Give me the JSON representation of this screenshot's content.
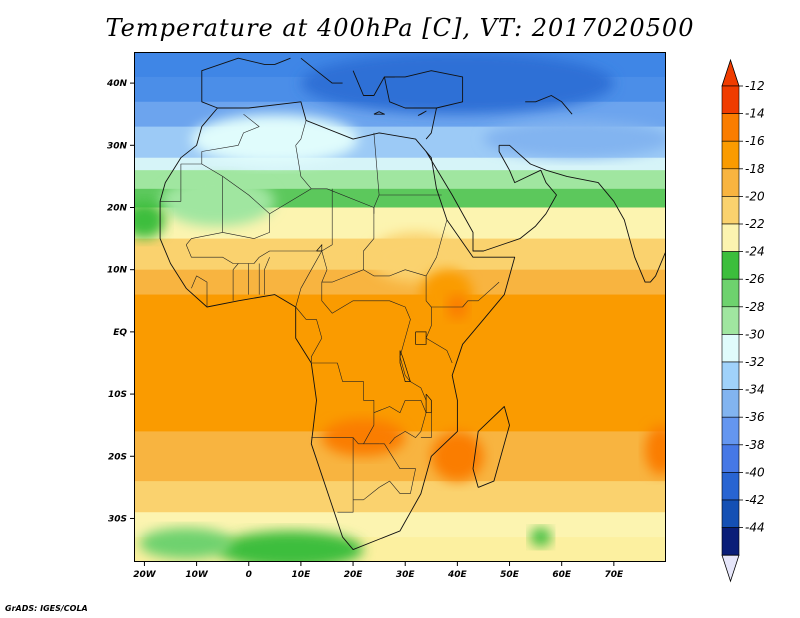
{
  "title": "Temperature at 400hPa [C], VT: 2017020500",
  "footer": "GrADS: IGES/COLA",
  "map": {
    "lon_range": [
      -22,
      80
    ],
    "lat_range": [
      -37,
      45
    ],
    "x_ticks": [
      {
        "lon": -20,
        "label": "20W"
      },
      {
        "lon": -10,
        "label": "10W"
      },
      {
        "lon": 0,
        "label": "0"
      },
      {
        "lon": 10,
        "label": "10E"
      },
      {
        "lon": 20,
        "label": "20E"
      },
      {
        "lon": 30,
        "label": "30E"
      },
      {
        "lon": 40,
        "label": "40E"
      },
      {
        "lon": 50,
        "label": "50E"
      },
      {
        "lon": 60,
        "label": "60E"
      },
      {
        "lon": 70,
        "label": "70E"
      }
    ],
    "y_ticks": [
      {
        "lat": 40,
        "label": "40N"
      },
      {
        "lat": 30,
        "label": "30N"
      },
      {
        "lat": 20,
        "label": "20N"
      },
      {
        "lat": 10,
        "label": "10N"
      },
      {
        "lat": 0,
        "label": "EQ"
      },
      {
        "lat": -10,
        "label": "10S"
      },
      {
        "lat": -20,
        "label": "20S"
      },
      {
        "lat": -30,
        "label": "30S"
      }
    ]
  },
  "colorbar": {
    "labels": [
      "-12",
      "-14",
      "-16",
      "-18",
      "-20",
      "-22",
      "-24",
      "-26",
      "-28",
      "-30",
      "-32",
      "-34",
      "-36",
      "-38",
      "-40",
      "-42",
      "-44"
    ],
    "colors": [
      "#f03c00",
      "#fa7d00",
      "#fa9b00",
      "#f8b440",
      "#fad26e",
      "#fcf4b0",
      "#3cbe3c",
      "#6ed26e",
      "#a0e6a0",
      "#e0fcfc",
      "#a0d2fa",
      "#82b4f0",
      "#6496f0",
      "#4678e6",
      "#2864d2",
      "#1450b4",
      "#0a1e78"
    ],
    "top_arrow_color": "#f03c00",
    "bottom_arrow_color": "#e6e6fa"
  },
  "bands": [
    {
      "lat": 45,
      "color": "#3f86e6"
    },
    {
      "lat": 41,
      "color": "#4b8ee8"
    },
    {
      "lat": 37,
      "color": "#6ca4ee"
    },
    {
      "lat": 33,
      "color": "#9ccaf6"
    },
    {
      "lat": 28,
      "color": "#d6f4f8"
    },
    {
      "lat": 26,
      "color": "#a0e6a0"
    },
    {
      "lat": 23,
      "color": "#5cc85c"
    },
    {
      "lat": 20,
      "color": "#fcf4b0"
    },
    {
      "lat": 15,
      "color": "#fad26e"
    },
    {
      "lat": 10,
      "color": "#f8b440"
    },
    {
      "lat": 6,
      "color": "#fa9b00"
    },
    {
      "lat": -16,
      "color": "#f8b440"
    },
    {
      "lat": -24,
      "color": "#fad26e"
    },
    {
      "lat": -29,
      "color": "#fcf4b0"
    },
    {
      "lat": -33,
      "color": "#fcf0a0"
    }
  ],
  "blobs": [
    {
      "lon": 5,
      "lat": 31,
      "rx": 16,
      "ry": 4,
      "color": "#e0fcfc"
    },
    {
      "lon": 40,
      "lat": 40,
      "rx": 30,
      "ry": 5,
      "color": "#2f6fd6"
    },
    {
      "lon": 63,
      "lat": 31,
      "rx": 18,
      "ry": 3,
      "color": "#82b4f0"
    },
    {
      "lon": -6,
      "lat": 21,
      "rx": 11,
      "ry": 4,
      "color": "#a0e6a0"
    },
    {
      "lon": 32,
      "lat": 12,
      "rx": 9,
      "ry": 4,
      "color": "#fad26e"
    },
    {
      "lon": 38,
      "lat": 6,
      "rx": 5,
      "ry": 4,
      "color": "#fa9b00"
    },
    {
      "lon": 40,
      "lat": 4,
      "rx": 2,
      "ry": 2,
      "color": "#fa7d00"
    },
    {
      "lon": 22,
      "lat": -17,
      "rx": 8,
      "ry": 3,
      "color": "#fa7d00"
    },
    {
      "lon": 40,
      "lat": -20,
      "rx": 5,
      "ry": 4,
      "color": "#fa7d00"
    },
    {
      "lon": 79,
      "lat": -19,
      "rx": 3,
      "ry": 4,
      "color": "#fa7d00"
    },
    {
      "lon": 56,
      "lat": -33,
      "rx": 2,
      "ry": 1.5,
      "color": "#3cbe3c"
    },
    {
      "lon": 8,
      "lat": -35,
      "rx": 14,
      "ry": 3,
      "color": "#3cbe3c"
    },
    {
      "lon": -12,
      "lat": -34,
      "rx": 9,
      "ry": 2.5,
      "color": "#6ed26e"
    },
    {
      "lon": -20,
      "lat": 18,
      "rx": 4,
      "ry": 3,
      "color": "#3cbe3c"
    }
  ],
  "outlines": [
    [
      [
        -17,
        21
      ],
      [
        -16,
        24
      ],
      [
        -13,
        28
      ],
      [
        -10,
        30
      ],
      [
        -9,
        33
      ],
      [
        -6,
        36
      ],
      [
        0,
        36
      ],
      [
        10,
        37
      ],
      [
        11,
        34
      ],
      [
        20,
        31
      ],
      [
        25,
        32
      ],
      [
        32,
        31
      ],
      [
        35,
        28
      ],
      [
        36,
        23
      ],
      [
        38,
        18
      ],
      [
        43,
        12
      ],
      [
        51,
        12
      ],
      [
        49,
        6
      ],
      [
        45,
        2
      ],
      [
        41,
        -2
      ],
      [
        39,
        -7
      ],
      [
        40,
        -11
      ],
      [
        40,
        -16
      ],
      [
        35,
        -20
      ],
      [
        33,
        -26
      ],
      [
        29,
        -32
      ],
      [
        20,
        -35
      ],
      [
        18,
        -33
      ],
      [
        16,
        -28
      ],
      [
        12,
        -18
      ],
      [
        13,
        -11
      ],
      [
        12,
        -5
      ],
      [
        9,
        -1
      ],
      [
        9,
        4
      ],
      [
        5,
        6
      ],
      [
        -2,
        5
      ],
      [
        -8,
        4
      ],
      [
        -12,
        7
      ],
      [
        -15,
        11
      ],
      [
        -17,
        15
      ],
      [
        -17,
        21
      ]
    ],
    [
      [
        44,
        -25
      ],
      [
        47,
        -24
      ],
      [
        50,
        -15
      ],
      [
        49,
        -12
      ],
      [
        44,
        -16
      ],
      [
        43,
        -22
      ],
      [
        44,
        -25
      ]
    ],
    [
      [
        -6,
        36
      ],
      [
        -9,
        37
      ],
      [
        -9,
        42
      ],
      [
        -2,
        44
      ],
      [
        3,
        43
      ],
      [
        5,
        43
      ],
      [
        8,
        44
      ]
    ],
    [
      [
        10,
        44
      ],
      [
        13,
        42
      ],
      [
        16,
        40
      ],
      [
        18,
        40
      ]
    ],
    [
      [
        20,
        42
      ],
      [
        22,
        38
      ],
      [
        24,
        38
      ],
      [
        26,
        41
      ],
      [
        28,
        41
      ]
    ],
    [
      [
        26,
        41
      ],
      [
        30,
        41
      ],
      [
        35,
        42
      ],
      [
        41,
        41
      ],
      [
        41,
        37
      ],
      [
        36,
        36
      ],
      [
        30,
        36
      ],
      [
        27,
        37
      ],
      [
        26,
        41
      ]
    ],
    [
      [
        36,
        36
      ],
      [
        35,
        32
      ],
      [
        34,
        31
      ]
    ],
    [
      [
        34,
        29
      ],
      [
        39,
        22
      ],
      [
        43,
        16
      ],
      [
        43,
        13
      ],
      [
        45,
        13
      ],
      [
        52,
        15
      ],
      [
        55,
        17
      ],
      [
        57,
        19
      ],
      [
        59,
        22
      ],
      [
        57,
        24
      ],
      [
        56,
        26
      ],
      [
        51,
        24
      ],
      [
        50,
        26
      ],
      [
        48,
        29
      ],
      [
        48,
        30
      ]
    ],
    [
      [
        48,
        30
      ],
      [
        50,
        30
      ],
      [
        54,
        27
      ],
      [
        57,
        26
      ],
      [
        61,
        25
      ],
      [
        67,
        24
      ],
      [
        68,
        23
      ],
      [
        70,
        21
      ],
      [
        72,
        18
      ],
      [
        73,
        15
      ],
      [
        74,
        12
      ],
      [
        76,
        8
      ],
      [
        77,
        8
      ],
      [
        78,
        9
      ],
      [
        80,
        13
      ]
    ],
    [
      [
        53,
        37
      ],
      [
        55,
        37
      ],
      [
        58,
        38
      ],
      [
        60,
        37
      ],
      [
        62,
        35
      ]
    ],
    [
      [
        80,
        7
      ],
      [
        81,
        8
      ],
      [
        81,
        6
      ],
      [
        80,
        6
      ],
      [
        80,
        7
      ]
    ],
    [
      [
        33,
        35
      ],
      [
        34,
        35.5
      ],
      [
        32.5,
        34.8
      ],
      [
        33,
        35
      ]
    ],
    [
      [
        24,
        35
      ],
      [
        26,
        35
      ],
      [
        25,
        35.4
      ],
      [
        24,
        35
      ]
    ]
  ],
  "borders": [
    [
      [
        -9,
        29
      ],
      [
        -2,
        30
      ],
      [
        -1,
        32
      ],
      [
        2,
        33
      ],
      [
        -1,
        35
      ]
    ],
    [
      [
        -9,
        29
      ],
      [
        -9,
        27
      ],
      [
        -13,
        27
      ],
      [
        -13,
        21
      ],
      [
        -17,
        21
      ]
    ],
    [
      [
        -9,
        27
      ],
      [
        -5,
        25
      ],
      [
        -5,
        16
      ],
      [
        -11,
        15
      ],
      [
        -12,
        14
      ]
    ],
    [
      [
        -5,
        25
      ],
      [
        0,
        22
      ],
      [
        4,
        19
      ],
      [
        4,
        16
      ],
      [
        1,
        15
      ],
      [
        -5,
        16
      ]
    ],
    [
      [
        4,
        19
      ],
      [
        12,
        23
      ],
      [
        15,
        23
      ],
      [
        24,
        20
      ],
      [
        24,
        19
      ]
    ],
    [
      [
        9,
        30
      ],
      [
        10,
        25
      ],
      [
        12,
        23
      ]
    ],
    [
      [
        11,
        34
      ],
      [
        10,
        31
      ],
      [
        9,
        30
      ]
    ],
    [
      [
        24,
        32
      ],
      [
        25,
        22
      ],
      [
        24,
        20
      ],
      [
        24,
        15
      ],
      [
        22,
        13
      ],
      [
        22,
        10
      ],
      [
        24,
        9
      ],
      [
        27,
        9
      ],
      [
        30,
        10
      ],
      [
        34,
        9
      ],
      [
        36,
        12
      ],
      [
        37,
        15
      ],
      [
        38,
        18
      ]
    ],
    [
      [
        25,
        22
      ],
      [
        37,
        22
      ]
    ],
    [
      [
        16,
        23
      ],
      [
        16,
        14
      ],
      [
        14,
        13
      ],
      [
        15,
        10
      ],
      [
        14,
        8
      ],
      [
        16,
        8
      ],
      [
        19,
        9
      ],
      [
        22,
        10
      ]
    ],
    [
      [
        14,
        13
      ],
      [
        12,
        13
      ],
      [
        4,
        13
      ],
      [
        2,
        12
      ],
      [
        1,
        11
      ],
      [
        -3,
        11
      ],
      [
        -5,
        12
      ],
      [
        -11,
        12
      ],
      [
        -12,
        14
      ]
    ],
    [
      [
        14,
        8
      ],
      [
        14,
        5
      ],
      [
        16,
        3
      ],
      [
        18,
        4
      ],
      [
        20,
        5
      ],
      [
        24,
        5
      ],
      [
        27,
        5
      ],
      [
        30,
        4
      ],
      [
        31,
        2
      ],
      [
        30,
        -1
      ],
      [
        29,
        -4
      ],
      [
        30,
        -7
      ],
      [
        31,
        -8
      ],
      [
        33,
        -9
      ],
      [
        34,
        -11
      ]
    ],
    [
      [
        34,
        9
      ],
      [
        34,
        5
      ],
      [
        35,
        4
      ],
      [
        37,
        4
      ],
      [
        41,
        4
      ],
      [
        42,
        5
      ],
      [
        44,
        5
      ],
      [
        48,
        8
      ]
    ],
    [
      [
        35,
        4
      ],
      [
        35,
        1
      ],
      [
        34,
        -1
      ],
      [
        38,
        -3
      ],
      [
        39,
        -5
      ]
    ],
    [
      [
        9,
        4
      ],
      [
        11,
        2
      ],
      [
        13,
        2
      ],
      [
        14,
        -1
      ],
      [
        12,
        -4
      ],
      [
        12,
        -5
      ],
      [
        13,
        -5
      ],
      [
        17,
        -5
      ],
      [
        18,
        -8
      ],
      [
        22,
        -8
      ],
      [
        22,
        -11
      ],
      [
        24,
        -11
      ],
      [
        24,
        -13
      ],
      [
        27,
        -12
      ],
      [
        29,
        -13
      ],
      [
        30,
        -11
      ]
    ],
    [
      [
        12,
        -17
      ],
      [
        14,
        -17
      ],
      [
        20,
        -17
      ],
      [
        21,
        -18
      ],
      [
        23,
        -18
      ],
      [
        25,
        -18
      ]
    ],
    [
      [
        20,
        -17
      ],
      [
        20,
        -22
      ],
      [
        20,
        -27
      ],
      [
        20,
        -29
      ],
      [
        17,
        -29
      ]
    ],
    [
      [
        25,
        -18
      ],
      [
        26,
        -18
      ],
      [
        29,
        -22
      ],
      [
        32,
        -22
      ],
      [
        31,
        -26
      ],
      [
        29,
        -26
      ],
      [
        27,
        -24
      ],
      [
        25,
        -25
      ],
      [
        22,
        -27
      ],
      [
        20,
        -27
      ]
    ],
    [
      [
        22,
        -18
      ],
      [
        24,
        -15
      ],
      [
        24,
        -13
      ]
    ],
    [
      [
        30,
        -11
      ],
      [
        33,
        -11
      ],
      [
        34,
        -13
      ],
      [
        33,
        -16
      ],
      [
        32,
        -17
      ],
      [
        30,
        -16
      ],
      [
        28,
        -17
      ],
      [
        27,
        -18
      ]
    ],
    [
      [
        35,
        -11
      ],
      [
        35,
        -15
      ],
      [
        35,
        -17
      ],
      [
        33,
        -17
      ]
    ],
    [
      [
        -8,
        4
      ],
      [
        -8,
        8
      ],
      [
        -10,
        9
      ],
      [
        -11,
        7
      ]
    ],
    [
      [
        -3,
        5
      ],
      [
        -3,
        10
      ],
      [
        -2,
        11
      ]
    ],
    [
      [
        0,
        6
      ],
      [
        0,
        11
      ]
    ],
    [
      [
        2,
        6
      ],
      [
        2,
        11
      ]
    ],
    [
      [
        3,
        6
      ],
      [
        3,
        10
      ],
      [
        4,
        12
      ]
    ],
    [
      [
        9,
        4
      ],
      [
        10,
        7
      ],
      [
        12,
        10
      ],
      [
        14,
        13
      ]
    ]
  ],
  "lakes": [
    [
      [
        32,
        0
      ],
      [
        34,
        0
      ],
      [
        34,
        -2
      ],
      [
        32,
        -2
      ],
      [
        32,
        0
      ]
    ],
    [
      [
        29,
        -3
      ],
      [
        29.5,
        -4
      ],
      [
        31,
        -8
      ],
      [
        30,
        -8
      ],
      [
        29,
        -5
      ],
      [
        29,
        -3
      ]
    ],
    [
      [
        34,
        -10
      ],
      [
        35,
        -11
      ],
      [
        35,
        -13
      ],
      [
        34,
        -13
      ],
      [
        34,
        -10
      ]
    ],
    [
      [
        13,
        13
      ],
      [
        14,
        14
      ],
      [
        14,
        13
      ],
      [
        13,
        13
      ]
    ]
  ]
}
